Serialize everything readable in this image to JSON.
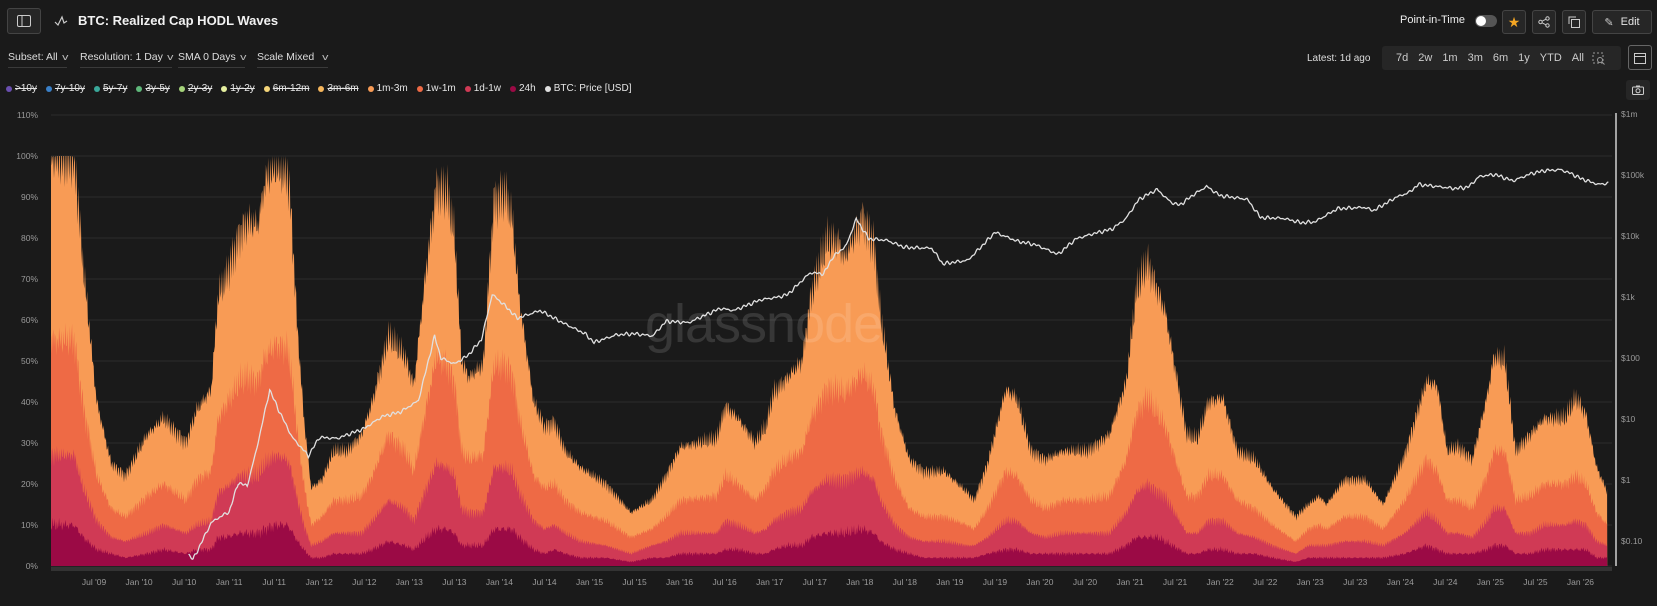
{
  "header": {
    "title": "BTC: Realized Cap HODL Waves",
    "point_in_time_label": "Point-in-Time",
    "point_in_time_on": false,
    "edit_label": "Edit"
  },
  "filters": [
    {
      "label": "Subset: All"
    },
    {
      "label": "Resolution: 1 Day"
    },
    {
      "label": "SMA 0 Days"
    },
    {
      "label": "Scale Mixed"
    }
  ],
  "latest": "Latest: 1d ago",
  "ranges": [
    "7d",
    "2w",
    "1m",
    "3m",
    "6m",
    "1y",
    "YTD",
    "All"
  ],
  "watermark": "glassnode",
  "colors": {
    "accent_star": "#f5a623",
    "background": "#1a1a1a"
  },
  "chart_data": {
    "type": "area",
    "title": "BTC: Realized Cap HODL Waves",
    "legend": [
      {
        "label": ">10y",
        "color": "#6a4fb0",
        "visible": false
      },
      {
        "label": "7y-10y",
        "color": "#3a80c8",
        "visible": false
      },
      {
        "label": "5y-7y",
        "color": "#3aa89a",
        "visible": false
      },
      {
        "label": "3y-5y",
        "color": "#5fb87a",
        "visible": false
      },
      {
        "label": "2y-3y",
        "color": "#a5d37a",
        "visible": false
      },
      {
        "label": "1y-2y",
        "color": "#e6f0a0",
        "visible": false
      },
      {
        "label": "6m-12m",
        "color": "#f5d67a",
        "visible": false
      },
      {
        "label": "3m-6m",
        "color": "#f6b65c",
        "visible": false
      },
      {
        "label": "1m-3m",
        "color": "#f89b55",
        "visible": true
      },
      {
        "label": "1w-1m",
        "color": "#ee6a45",
        "visible": true
      },
      {
        "label": "1d-1w",
        "color": "#d03a55",
        "visible": true
      },
      {
        "label": "24h",
        "color": "#9b0a45",
        "visible": true
      },
      {
        "label": "BTC: Price [USD]",
        "color": "#e0e0e0",
        "visible": true
      }
    ],
    "left_axis": {
      "ylim": [
        0,
        110
      ],
      "ticks": [
        "0%",
        "10%",
        "20%",
        "30%",
        "40%",
        "50%",
        "60%",
        "70%",
        "80%",
        "90%",
        "100%",
        "110%"
      ]
    },
    "right_axis": {
      "scale": "log",
      "ylim": [
        0.03,
        1000000
      ],
      "ticks": [
        "$0.10",
        "$1",
        "$10",
        "$100",
        "$1k",
        "$10k",
        "$100k",
        "$1m"
      ]
    },
    "x_axis": {
      "xlim": [
        2009.0,
        2026.35
      ],
      "ticks": [
        "Jul '09",
        "Jan '10",
        "Jul '10",
        "Jan '11",
        "Jul '11",
        "Jan '12",
        "Jul '12",
        "Jan '13",
        "Jul '13",
        "Jan '14",
        "Jul '14",
        "Jan '15",
        "Jul '15",
        "Jan '16",
        "Jul '16",
        "Jan '17",
        "Jul '17",
        "Jan '18",
        "Jul '18",
        "Jan '19",
        "Jul '19",
        "Jan '20",
        "Jul '20",
        "Jan '21",
        "Jul '21",
        "Jan '22",
        "Jul '22",
        "Jan '23",
        "Jul '23",
        "Jan '24",
        "Jul '24",
        "Jan '25",
        "Jul '25",
        "Jan '26"
      ]
    },
    "grid": true,
    "legend_placement": "top-left",
    "columns": [
      "year",
      "24h",
      "1d-1w",
      "1w-1m",
      "1m-3m"
    ],
    "rows": [
      [
        2009.0,
        10,
        17,
        28,
        45
      ],
      [
        2009.28,
        10,
        17,
        28,
        45
      ],
      [
        2009.38,
        7,
        12,
        20,
        34
      ],
      [
        2009.53,
        4,
        7,
        11,
        18
      ],
      [
        2009.69,
        3,
        4,
        7,
        11
      ],
      [
        2009.85,
        2,
        4,
        6,
        10
      ],
      [
        2010.09,
        3,
        5,
        9,
        15
      ],
      [
        2010.27,
        4,
        6,
        10,
        16
      ],
      [
        2010.52,
        3,
        5,
        8,
        14
      ],
      [
        2010.64,
        4,
        6,
        11,
        17
      ],
      [
        2010.8,
        4,
        7,
        12,
        20
      ],
      [
        2010.88,
        7,
        11,
        18,
        30
      ],
      [
        2010.96,
        7,
        12,
        20,
        31
      ],
      [
        2011.12,
        8,
        14,
        23,
        36
      ],
      [
        2011.2,
        8,
        14,
        24,
        38
      ],
      [
        2011.32,
        8,
        14,
        23,
        38
      ],
      [
        2011.4,
        9,
        16,
        26,
        43
      ],
      [
        2011.52,
        10,
        17,
        27,
        44
      ],
      [
        2011.64,
        10,
        16,
        27,
        43
      ],
      [
        2011.68,
        9,
        15,
        25,
        40
      ],
      [
        2011.76,
        6,
        10,
        16,
        25
      ],
      [
        2011.83,
        4,
        6,
        10,
        16
      ],
      [
        2011.91,
        2,
        3,
        5,
        9
      ],
      [
        2012.03,
        2,
        4,
        6,
        9
      ],
      [
        2012.16,
        3,
        5,
        8,
        12
      ],
      [
        2012.31,
        3,
        5,
        8,
        12
      ],
      [
        2012.47,
        3,
        5,
        9,
        15
      ],
      [
        2012.59,
        4,
        7,
        11,
        18
      ],
      [
        2012.77,
        6,
        10,
        16,
        24
      ],
      [
        2012.95,
        5,
        9,
        14,
        23
      ],
      [
        2013.05,
        4,
        7,
        12,
        21
      ],
      [
        2013.19,
        7,
        12,
        20,
        34
      ],
      [
        2013.3,
        9,
        16,
        26,
        41
      ],
      [
        2013.42,
        9,
        15,
        25,
        42
      ],
      [
        2013.5,
        8,
        14,
        23,
        36
      ],
      [
        2013.58,
        5,
        9,
        14,
        22
      ],
      [
        2013.66,
        5,
        8,
        13,
        20
      ],
      [
        2013.82,
        5,
        8,
        14,
        22
      ],
      [
        2013.94,
        9,
        15,
        25,
        40
      ],
      [
        2014.06,
        9,
        15,
        25,
        42
      ],
      [
        2014.14,
        9,
        14,
        24,
        38
      ],
      [
        2014.22,
        7,
        11,
        18,
        29
      ],
      [
        2014.38,
        4,
        7,
        11,
        18
      ],
      [
        2014.5,
        3,
        6,
        10,
        15
      ],
      [
        2014.61,
        4,
        6,
        10,
        15
      ],
      [
        2014.73,
        3,
        5,
        8,
        12
      ],
      [
        2014.9,
        2,
        4,
        7,
        11
      ],
      [
        2015.18,
        2,
        3,
        6,
        9
      ],
      [
        2015.46,
        1,
        2,
        4,
        6
      ],
      [
        2015.69,
        2,
        3,
        4,
        7
      ],
      [
        2015.85,
        2,
        4,
        6,
        10
      ],
      [
        2016.01,
        3,
        5,
        8,
        13
      ],
      [
        2016.41,
        3,
        5,
        9,
        14
      ],
      [
        2016.51,
        4,
        7,
        11,
        17
      ],
      [
        2016.65,
        4,
        6,
        10,
        16
      ],
      [
        2016.84,
        3,
        5,
        8,
        14
      ],
      [
        2016.96,
        3,
        6,
        10,
        15
      ],
      [
        2017.04,
        4,
        7,
        12,
        19
      ],
      [
        2017.2,
        5,
        8,
        13,
        20
      ],
      [
        2017.36,
        5,
        9,
        14,
        22
      ],
      [
        2017.46,
        7,
        11,
        18,
        30
      ],
      [
        2017.63,
        8,
        13,
        22,
        36
      ],
      [
        2017.76,
        8,
        13,
        22,
        36
      ],
      [
        2017.83,
        8,
        13,
        21,
        33
      ],
      [
        2018.03,
        9,
        14,
        24,
        38
      ],
      [
        2018.16,
        8,
        13,
        22,
        35
      ],
      [
        2018.23,
        6,
        10,
        17,
        28
      ],
      [
        2018.39,
        4,
        6,
        11,
        17
      ],
      [
        2018.55,
        3,
        4,
        7,
        12
      ],
      [
        2018.71,
        2,
        4,
        6,
        11
      ],
      [
        2018.94,
        2,
        4,
        6,
        11
      ],
      [
        2019.19,
        2,
        3,
        5,
        8
      ],
      [
        2019.27,
        2,
        3,
        4,
        7
      ],
      [
        2019.42,
        3,
        4,
        7,
        11
      ],
      [
        2019.62,
        4,
        7,
        12,
        20
      ],
      [
        2019.74,
        4,
        7,
        11,
        19
      ],
      [
        2019.9,
        3,
        5,
        8,
        12
      ],
      [
        2020.06,
        3,
        4,
        7,
        12
      ],
      [
        2020.26,
        3,
        5,
        8,
        12
      ],
      [
        2020.53,
        3,
        5,
        8,
        12
      ],
      [
        2020.77,
        3,
        5,
        9,
        15
      ],
      [
        2020.96,
        5,
        8,
        13,
        19
      ],
      [
        2021.07,
        7,
        11,
        19,
        30
      ],
      [
        2021.19,
        7,
        13,
        21,
        33
      ],
      [
        2021.31,
        7,
        11,
        19,
        30
      ],
      [
        2021.39,
        6,
        11,
        17,
        28
      ],
      [
        2021.63,
        3,
        5,
        9,
        15
      ],
      [
        2021.75,
        3,
        5,
        9,
        14
      ],
      [
        2021.87,
        4,
        7,
        11,
        18
      ],
      [
        2022.03,
        4,
        7,
        11,
        19
      ],
      [
        2022.19,
        3,
        5,
        8,
        12
      ],
      [
        2022.38,
        3,
        4,
        7,
        12
      ],
      [
        2022.58,
        2,
        3,
        5,
        9
      ],
      [
        2022.84,
        1,
        2,
        3,
        6
      ],
      [
        2022.98,
        2,
        3,
        4,
        6
      ],
      [
        2023.1,
        2,
        3,
        5,
        7
      ],
      [
        2023.18,
        2,
        3,
        4,
        6
      ],
      [
        2023.38,
        2,
        4,
        6,
        9
      ],
      [
        2023.61,
        2,
        4,
        6,
        9
      ],
      [
        2023.81,
        2,
        3,
        4,
        6
      ],
      [
        2024.05,
        3,
        5,
        8,
        11
      ],
      [
        2024.29,
        5,
        8,
        13,
        19
      ],
      [
        2024.41,
        4,
        7,
        12,
        21
      ],
      [
        2024.52,
        3,
        5,
        8,
        12
      ],
      [
        2024.64,
        3,
        5,
        8,
        13
      ],
      [
        2024.8,
        3,
        4,
        7,
        12
      ],
      [
        2024.96,
        4,
        7,
        11,
        19
      ],
      [
        2025.04,
        5,
        9,
        14,
        23
      ],
      [
        2025.16,
        5,
        9,
        14,
        22
      ],
      [
        2025.28,
        3,
        5,
        8,
        12
      ],
      [
        2025.44,
        3,
        5,
        9,
        15
      ],
      [
        2025.6,
        4,
        6,
        10,
        16
      ],
      [
        2025.83,
        4,
        6,
        10,
        16
      ],
      [
        2025.95,
        4,
        7,
        11,
        19
      ],
      [
        2026.06,
        4,
        6,
        10,
        17
      ],
      [
        2026.18,
        2,
        4,
        7,
        11
      ],
      [
        2026.3,
        2,
        3,
        5,
        8
      ]
    ],
    "price_series": {
      "name": "BTC: Price [USD]",
      "points": [
        [
          2010.55,
          0.06
        ],
        [
          2010.6,
          0.05
        ],
        [
          2010.65,
          0.07
        ],
        [
          2010.8,
          0.2
        ],
        [
          2010.9,
          0.25
        ],
        [
          2011.0,
          0.3
        ],
        [
          2011.1,
          0.9
        ],
        [
          2011.2,
          0.8
        ],
        [
          2011.3,
          3
        ],
        [
          2011.45,
          30
        ],
        [
          2011.55,
          14
        ],
        [
          2011.7,
          5
        ],
        [
          2011.88,
          2.5
        ],
        [
          2012.0,
          5
        ],
        [
          2012.2,
          4.8
        ],
        [
          2012.5,
          7
        ],
        [
          2012.7,
          11
        ],
        [
          2012.9,
          13
        ],
        [
          2013.1,
          20
        ],
        [
          2013.28,
          230
        ],
        [
          2013.35,
          100
        ],
        [
          2013.5,
          80
        ],
        [
          2013.65,
          110
        ],
        [
          2013.8,
          200
        ],
        [
          2013.92,
          1100
        ],
        [
          2014.05,
          750
        ],
        [
          2014.2,
          450
        ],
        [
          2014.45,
          600
        ],
        [
          2014.7,
          380
        ],
        [
          2014.95,
          250
        ],
        [
          2015.05,
          180
        ],
        [
          2015.3,
          240
        ],
        [
          2015.5,
          250
        ],
        [
          2015.7,
          230
        ],
        [
          2015.85,
          400
        ],
        [
          2016.1,
          380
        ],
        [
          2016.45,
          650
        ],
        [
          2016.6,
          600
        ],
        [
          2016.9,
          900
        ],
        [
          2017.1,
          1000
        ],
        [
          2017.2,
          1100
        ],
        [
          2017.45,
          2500
        ],
        [
          2017.6,
          2400
        ],
        [
          2017.7,
          4500
        ],
        [
          2017.85,
          7000
        ],
        [
          2017.96,
          19000
        ],
        [
          2018.1,
          9000
        ],
        [
          2018.3,
          8500
        ],
        [
          2018.5,
          6500
        ],
        [
          2018.8,
          6300
        ],
        [
          2018.92,
          3500
        ],
        [
          2019.2,
          4000
        ],
        [
          2019.4,
          8000
        ],
        [
          2019.5,
          11500
        ],
        [
          2019.75,
          8200
        ],
        [
          2019.95,
          7200
        ],
        [
          2020.2,
          5000
        ],
        [
          2020.4,
          9000
        ],
        [
          2020.6,
          11000
        ],
        [
          2020.8,
          13000
        ],
        [
          2020.95,
          19000
        ],
        [
          2021.1,
          40000
        ],
        [
          2021.3,
          58000
        ],
        [
          2021.45,
          36000
        ],
        [
          2021.55,
          32000
        ],
        [
          2021.7,
          47000
        ],
        [
          2021.85,
          65000
        ],
        [
          2022.0,
          46000
        ],
        [
          2022.3,
          40000
        ],
        [
          2022.45,
          20000
        ],
        [
          2022.7,
          19500
        ],
        [
          2022.9,
          16500
        ],
        [
          2023.05,
          17000
        ],
        [
          2023.3,
          28000
        ],
        [
          2023.6,
          29500
        ],
        [
          2023.7,
          26000
        ],
        [
          2023.85,
          35000
        ],
        [
          2023.95,
          43000
        ],
        [
          2024.1,
          52000
        ],
        [
          2024.2,
          70000
        ],
        [
          2024.4,
          65000
        ],
        [
          2024.6,
          60000
        ],
        [
          2024.75,
          63000
        ],
        [
          2024.88,
          95000
        ],
        [
          2025.05,
          102000
        ],
        [
          2025.25,
          80000
        ],
        [
          2025.45,
          105000
        ],
        [
          2025.6,
          118000
        ],
        [
          2025.78,
          122000
        ],
        [
          2025.9,
          105000
        ],
        [
          2026.0,
          88000
        ],
        [
          2026.1,
          78000
        ],
        [
          2026.2,
          70000
        ],
        [
          2026.32,
          74000
        ]
      ]
    }
  }
}
